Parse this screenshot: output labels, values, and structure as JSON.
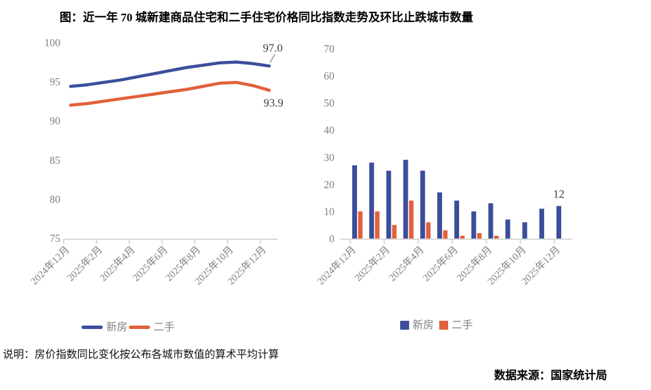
{
  "title": "图：近一年 70 城新建商品住宅和二手住宅价格同比指数走势及环比止跌城市数量",
  "note": "说明：房价指数同比变化按公布各城市数值的算术平均计算",
  "source": "数据来源：国家统计局",
  "colors": {
    "new_home": "#3B4E9B",
    "second_hand": "#E2603C",
    "axis": "#D9D9D9",
    "tick_label": "#808080",
    "data_label": "#3F3F3F",
    "leader_line": "#9B9B9B"
  },
  "chart_data": [
    {
      "type": "line",
      "title": "70城新建商品住宅和二手住宅价格同比指数走势",
      "x_tick_labels": [
        "2024年12月",
        "2025年2月",
        "2025年4月",
        "2025年6月",
        "2025年8月",
        "2025年10月",
        "2025年12月"
      ],
      "x_frequency": "monthly (13 points, Dec 2024 - Dec 2025)",
      "series": [
        {
          "name": "新房",
          "color": "#3B4E9B",
          "values": [
            94.4,
            94.6,
            94.9,
            95.2,
            95.6,
            96.0,
            96.4,
            96.8,
            97.1,
            97.4,
            97.5,
            97.3,
            97.0
          ],
          "end_label": "97.0"
        },
        {
          "name": "二手",
          "color": "#E2603C",
          "values": [
            92.0,
            92.2,
            92.5,
            92.8,
            93.1,
            93.4,
            93.7,
            94.0,
            94.4,
            94.8,
            94.9,
            94.5,
            93.9
          ],
          "end_label": "93.9"
        }
      ],
      "ylim": [
        75,
        100
      ],
      "y_ticks": [
        100,
        95,
        90,
        85,
        80,
        75
      ],
      "grid": false,
      "legend_position": "bottom"
    },
    {
      "type": "bar",
      "title": "环比止跌城市数量",
      "x_tick_labels": [
        "2024年12月",
        "2025年2月",
        "2025年4月",
        "2025年6月",
        "2025年8月",
        "2025年10月",
        "2025年12月"
      ],
      "x_frequency": "monthly (13 pairs, Dec 2024 - Dec 2025)",
      "series": [
        {
          "name": "新房",
          "color": "#3B4E9B",
          "values": [
            27,
            28,
            25,
            29,
            25,
            17,
            14,
            10,
            13,
            7,
            6,
            11,
            12
          ]
        },
        {
          "name": "二手",
          "color": "#E2603C",
          "values": [
            10,
            10,
            5,
            14,
            6,
            3,
            1,
            2,
            1,
            0,
            0,
            0,
            0
          ]
        }
      ],
      "ylim": [
        0,
        70
      ],
      "y_ticks": [
        70,
        60,
        50,
        40,
        30,
        20,
        10,
        0
      ],
      "last_value_label": "12",
      "grid": false,
      "legend_position": "bottom"
    }
  ],
  "legend_line": {
    "item1": "新房",
    "item2": "二手"
  },
  "legend_bar": {
    "item1": "新房",
    "item2": "二手"
  }
}
